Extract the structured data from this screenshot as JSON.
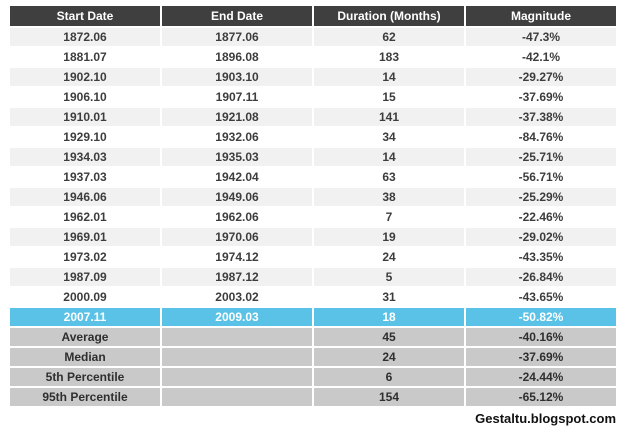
{
  "chart_data": {
    "type": "table",
    "columns": [
      "Start Date",
      "End Date",
      "Duration (Months)",
      "Magnitude"
    ],
    "rows": [
      {
        "type": "data",
        "cells": [
          "1872.06",
          "1877.06",
          "62",
          "-47.3%"
        ]
      },
      {
        "type": "data",
        "cells": [
          "1881.07",
          "1896.08",
          "183",
          "-42.1%"
        ]
      },
      {
        "type": "data",
        "cells": [
          "1902.10",
          "1903.10",
          "14",
          "-29.27%"
        ]
      },
      {
        "type": "data",
        "cells": [
          "1906.10",
          "1907.11",
          "15",
          "-37.69%"
        ]
      },
      {
        "type": "data",
        "cells": [
          "1910.01",
          "1921.08",
          "141",
          "-37.38%"
        ]
      },
      {
        "type": "data",
        "cells": [
          "1929.10",
          "1932.06",
          "34",
          "-84.76%"
        ]
      },
      {
        "type": "data",
        "cells": [
          "1934.03",
          "1935.03",
          "14",
          "-25.71%"
        ]
      },
      {
        "type": "data",
        "cells": [
          "1937.03",
          "1942.04",
          "63",
          "-56.71%"
        ]
      },
      {
        "type": "data",
        "cells": [
          "1946.06",
          "1949.06",
          "38",
          "-25.29%"
        ]
      },
      {
        "type": "data",
        "cells": [
          "1962.01",
          "1962.06",
          "7",
          "-22.46%"
        ]
      },
      {
        "type": "data",
        "cells": [
          "1969.01",
          "1970.06",
          "19",
          "-29.02%"
        ]
      },
      {
        "type": "data",
        "cells": [
          "1973.02",
          "1974.12",
          "24",
          "-43.35%"
        ]
      },
      {
        "type": "data",
        "cells": [
          "1987.09",
          "1987.12",
          "5",
          "-26.84%"
        ]
      },
      {
        "type": "data",
        "cells": [
          "2000.09",
          "2003.02",
          "31",
          "-43.65%"
        ]
      },
      {
        "type": "highlight",
        "cells": [
          "2007.11",
          "2009.03",
          "18",
          "-50.82%"
        ]
      },
      {
        "type": "summary",
        "cells": [
          "Average",
          "",
          "45",
          "-40.16%"
        ]
      },
      {
        "type": "summary",
        "cells": [
          "Median",
          "",
          "24",
          "-37.69%"
        ]
      },
      {
        "type": "summary",
        "cells": [
          "5th Percentile",
          "",
          "6",
          "-24.44%"
        ]
      },
      {
        "type": "summary",
        "cells": [
          "95th Percentile",
          "",
          "154",
          "-65.12%"
        ]
      }
    ],
    "layout": {
      "highlighted_row_index": 14,
      "striping": "odd rows light gray, even rows white"
    }
  },
  "colors": {
    "header_bg": "#3f3f3f",
    "header_text": "#ffffff",
    "stripe_bg": "#f1f1f1",
    "highlight_bg": "#5bc2e7",
    "highlight_text": "#ffffff",
    "summary_bg": "#c9c9c9",
    "cell_text": "#3d3d3d"
  },
  "footer": {
    "credit": "Gestaltu.blogspot.com"
  }
}
